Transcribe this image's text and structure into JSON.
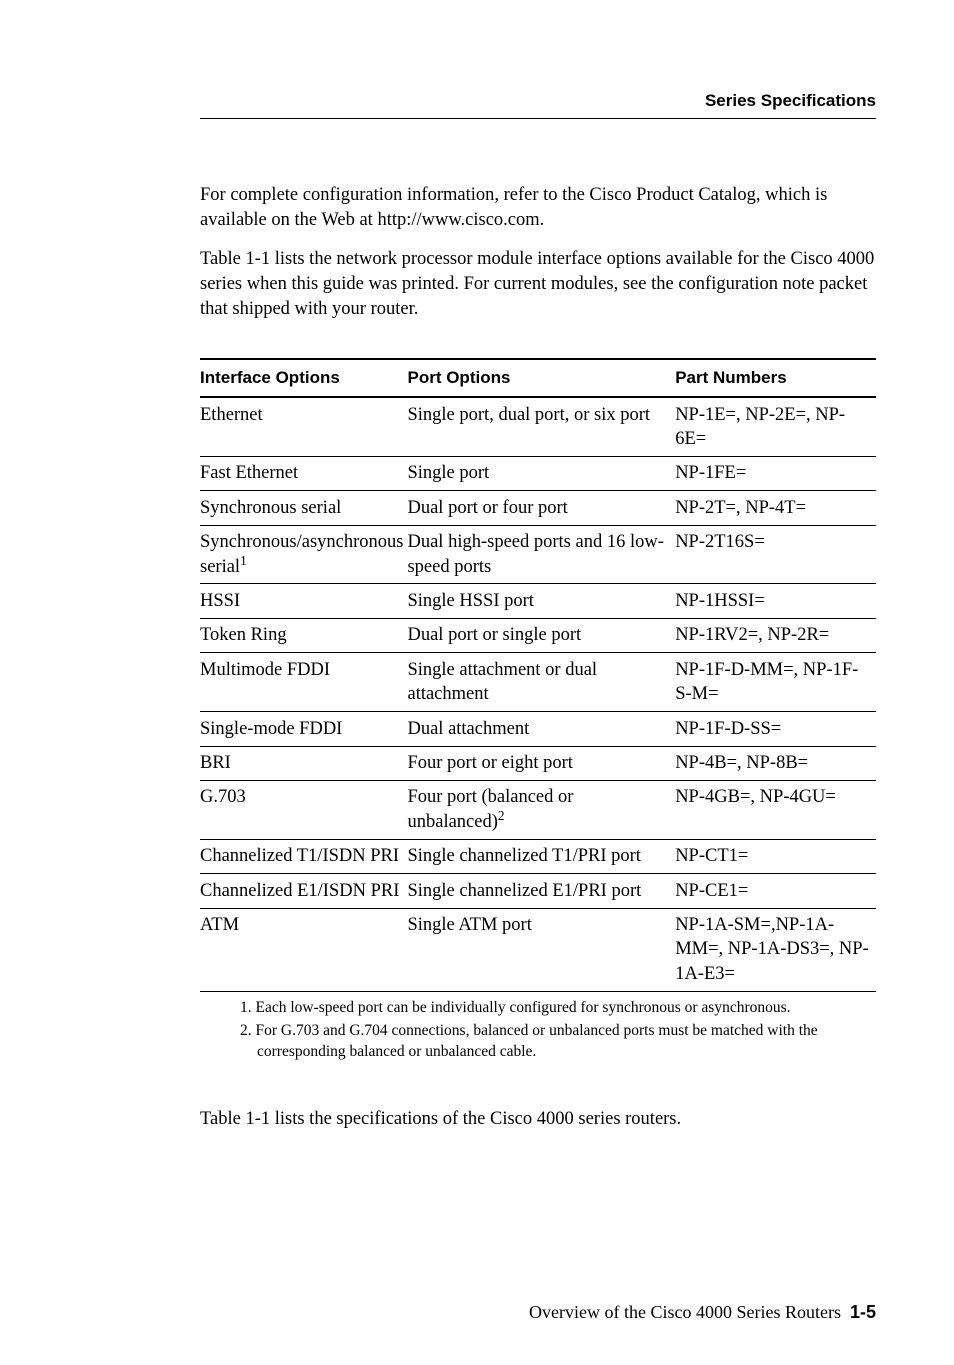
{
  "running_head": "Series Specifications",
  "paragraph1": "For complete configuration information, refer to the Cisco Product Catalog, which is available on the Web at http://www.cisco.com.",
  "paragraph2": "Table 1-1 lists the network processor module interface options available for the Cisco 4000 series when this guide was printed. For current modules, see the configuration note packet that shipped with your router.",
  "table": {
    "col_widths": [
      "30%",
      "40%",
      "30%"
    ],
    "headers": [
      "Interface Options",
      "Port Options",
      "Part Numbers"
    ],
    "rows": [
      {
        "interface": "Ethernet",
        "sup_if": "",
        "ports": "Single port, dual port, or six port",
        "sup_ports": "",
        "parts": "NP-1E=, NP-2E=, NP-6E="
      },
      {
        "interface": "Fast Ethernet",
        "sup_if": "",
        "ports": "Single port",
        "sup_ports": "",
        "parts": "NP-1FE="
      },
      {
        "interface": "Synchronous serial",
        "sup_if": "",
        "ports": "Dual port or four port",
        "sup_ports": "",
        "parts": "NP-2T=, NP-4T="
      },
      {
        "interface": "Synchronous/asynchronous serial",
        "sup_if": "1",
        "ports": "Dual high-speed ports and 16 low-speed ports",
        "sup_ports": "",
        "parts": "NP-2T16S="
      },
      {
        "interface": "HSSI",
        "sup_if": "",
        "ports": "Single HSSI port",
        "sup_ports": "",
        "parts": "NP-1HSSI="
      },
      {
        "interface": "Token Ring",
        "sup_if": "",
        "ports": "Dual port or single port",
        "sup_ports": "",
        "parts": "NP-1RV2=, NP-2R="
      },
      {
        "interface": "Multimode FDDI",
        "sup_if": "",
        "ports": "Single attachment or dual attachment",
        "sup_ports": "",
        "parts": "NP-1F-D-MM=, NP-1F-S-M="
      },
      {
        "interface": "Single-mode FDDI",
        "sup_if": "",
        "ports": "Dual attachment",
        "sup_ports": "",
        "parts": "NP-1F-D-SS="
      },
      {
        "interface": "BRI",
        "sup_if": "",
        "ports": "Four port or eight port",
        "sup_ports": "",
        "parts": "NP-4B=, NP-8B="
      },
      {
        "interface": "G.703",
        "sup_if": "",
        "ports": "Four port (balanced or unbalanced)",
        "sup_ports": "2",
        "parts": "NP-4GB=, NP-4GU="
      },
      {
        "interface": "Channelized T1/ISDN PRI",
        "sup_if": "",
        "ports": "Single channelized T1/PRI port",
        "sup_ports": "",
        "parts": "NP-CT1="
      },
      {
        "interface": "Channelized E1/ISDN PRI",
        "sup_if": "",
        "ports": "Single channelized E1/PRI port",
        "sup_ports": "",
        "parts": "NP-CE1="
      },
      {
        "interface": "ATM",
        "sup_if": "",
        "ports": "Single ATM port",
        "sup_ports": "",
        "parts": "NP-1A-SM=,NP-1A-MM=, NP-1A-DS3=, NP-1A-E3="
      }
    ]
  },
  "footnotes": [
    "1. Each low-speed port can be individually configured for synchronous or asynchronous.",
    "2. For G.703 and G.704 connections, balanced or unbalanced ports must be matched with the corresponding balanced or unbalanced cable."
  ],
  "after_table": "Table 1-1 lists the specifications of the Cisco 4000 series routers.",
  "footer": {
    "label": "Overview of the Cisco 4000 Series Routers",
    "page": "1-5"
  }
}
